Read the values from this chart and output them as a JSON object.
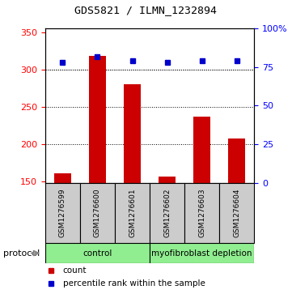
{
  "title": "GDS5821 / ILMN_1232894",
  "samples": [
    "GSM1276599",
    "GSM1276600",
    "GSM1276601",
    "GSM1276602",
    "GSM1276603",
    "GSM1276604"
  ],
  "counts": [
    161,
    318,
    280,
    156,
    237,
    208
  ],
  "percentiles": [
    78,
    82,
    79,
    78,
    79,
    79
  ],
  "ylim_left": [
    148,
    355
  ],
  "ylim_right": [
    0,
    100
  ],
  "yticks_left": [
    150,
    200,
    250,
    300,
    350
  ],
  "yticks_right": [
    0,
    25,
    50,
    75,
    100
  ],
  "ytick_labels_right": [
    "0",
    "25",
    "50",
    "75",
    "100%"
  ],
  "bar_color": "#cc0000",
  "dot_color": "#0000cc",
  "bar_width": 0.5,
  "groups": [
    {
      "label": "control",
      "span": [
        0,
        3
      ],
      "color": "#90ee90"
    },
    {
      "label": "myofibroblast depletion",
      "span": [
        3,
        6
      ],
      "color": "#90ee90"
    }
  ],
  "protocol_label": "protocol",
  "legend_count_label": "count",
  "legend_pct_label": "percentile rank within the sample",
  "sample_box_color": "#cccccc",
  "background_color": "#ffffff"
}
